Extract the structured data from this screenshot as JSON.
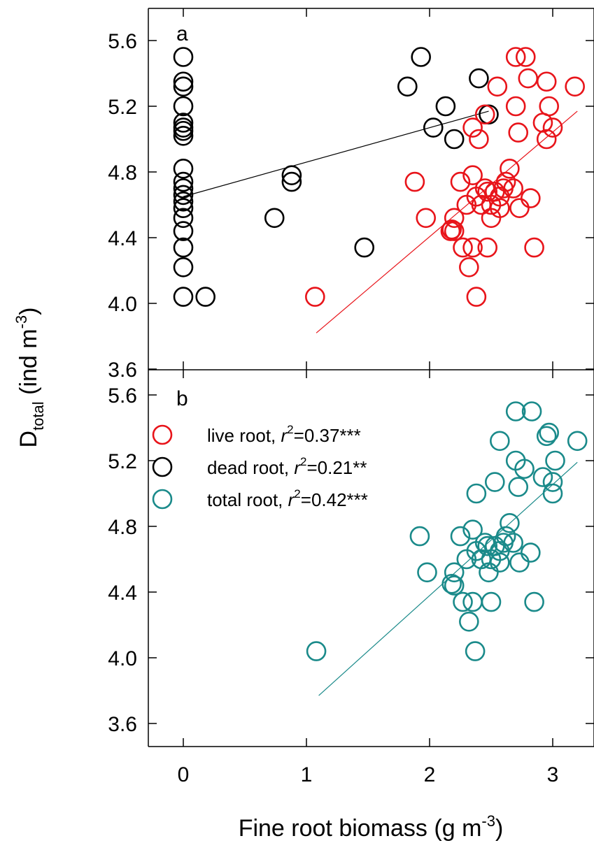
{
  "chart_data": {
    "type": "scatter",
    "xlabel": "Fine root biomass",
    "xlabel_unit_prefix": "(g m",
    "xlabel_unit_exp": "-3",
    "xlabel_unit_suffix": ")",
    "ylabel_main": "D",
    "ylabel_sub": "total",
    "ylabel_unit_prefix": " (ind m",
    "ylabel_unit_exp": "-3",
    "ylabel_unit_suffix": ")",
    "xlim": [
      -0.3,
      3.4
    ],
    "x_ticks": [
      0,
      1,
      2,
      3
    ],
    "ylim": [
      3.6,
      5.75
    ],
    "y_ticks": [
      "3.6",
      "4.0",
      "4.4",
      "4.8",
      "5.2",
      "5.6"
    ],
    "grid": false,
    "legend_position": "upper-left of panel b",
    "colors": {
      "live": "#e8141a",
      "dead": "#000000",
      "total": "#1a8a8a"
    },
    "legend": [
      {
        "series": "live",
        "label": "live root, ",
        "r": "r",
        "r_exp": "2",
        "stat": "=0.37***"
      },
      {
        "series": "dead",
        "label": "dead root, ",
        "r": "r",
        "r_exp": "2",
        "stat": "=0.21**"
      },
      {
        "series": "total",
        "label": "total root, ",
        "r": "r",
        "r_exp": "2",
        "stat": "=0.42***"
      }
    ],
    "panels": [
      {
        "label": "a",
        "series": [
          {
            "key": "dead",
            "points": [
              [
                0,
                5.5
              ],
              [
                0,
                5.35
              ],
              [
                0,
                5.32
              ],
              [
                0,
                5.2
              ],
              [
                0,
                5.1
              ],
              [
                0,
                5.07
              ],
              [
                0,
                5.05
              ],
              [
                0,
                5.02
              ],
              [
                0,
                4.82
              ],
              [
                0,
                4.74
              ],
              [
                0,
                4.7
              ],
              [
                0,
                4.66
              ],
              [
                0,
                4.62
              ],
              [
                0,
                4.58
              ],
              [
                0,
                4.52
              ],
              [
                0,
                4.44
              ],
              [
                0,
                4.34
              ],
              [
                0,
                4.22
              ],
              [
                0,
                4.04
              ],
              [
                0.18,
                4.04
              ],
              [
                0.74,
                4.52
              ],
              [
                0.88,
                4.78
              ],
              [
                0.88,
                4.74
              ],
              [
                1.47,
                4.34
              ],
              [
                1.82,
                5.32
              ],
              [
                1.93,
                5.5
              ],
              [
                2.03,
                5.07
              ],
              [
                2.13,
                5.2
              ],
              [
                2.2,
                5.0
              ],
              [
                2.4,
                5.37
              ],
              [
                2.48,
                5.15
              ]
            ],
            "fit": [
              [
                0,
                4.65
              ],
              [
                2.48,
                5.17
              ]
            ]
          },
          {
            "key": "live",
            "points": [
              [
                1.07,
                4.04
              ],
              [
                1.88,
                4.74
              ],
              [
                1.97,
                4.52
              ],
              [
                2.18,
                4.45
              ],
              [
                2.2,
                4.44
              ],
              [
                2.2,
                4.52
              ],
              [
                2.25,
                4.74
              ],
              [
                2.27,
                4.34
              ],
              [
                2.3,
                4.6
              ],
              [
                2.32,
                4.22
              ],
              [
                2.35,
                4.34
              ],
              [
                2.35,
                4.78
              ],
              [
                2.38,
                4.04
              ],
              [
                2.38,
                4.65
              ],
              [
                2.4,
                5.0
              ],
              [
                2.42,
                4.6
              ],
              [
                2.45,
                4.7
              ],
              [
                2.47,
                4.68
              ],
              [
                2.47,
                4.34
              ],
              [
                2.5,
                4.6
              ],
              [
                2.5,
                4.52
              ],
              [
                2.53,
                4.68
              ],
              [
                2.57,
                4.58
              ],
              [
                2.57,
                4.65
              ],
              [
                2.6,
                4.7
              ],
              [
                2.62,
                4.74
              ],
              [
                2.65,
                4.82
              ],
              [
                2.68,
                4.7
              ],
              [
                2.7,
                5.5
              ],
              [
                2.7,
                5.2
              ],
              [
                2.72,
                5.04
              ],
              [
                2.73,
                4.58
              ],
              [
                2.78,
                5.5
              ],
              [
                2.8,
                5.37
              ],
              [
                2.82,
                4.64
              ],
              [
                2.85,
                4.34
              ],
              [
                2.92,
                5.1
              ],
              [
                2.95,
                5.35
              ],
              [
                2.95,
                5.0
              ],
              [
                2.97,
                5.2
              ],
              [
                3.0,
                5.07
              ],
              [
                3.18,
                5.32
              ],
              [
                2.35,
                5.07
              ],
              [
                2.45,
                5.15
              ],
              [
                2.55,
                5.32
              ],
              [
                2.17,
                4.44
              ]
            ],
            "fit": [
              [
                1.08,
                3.82
              ],
              [
                3.2,
                5.17
              ]
            ]
          }
        ]
      },
      {
        "label": "b",
        "series": [
          {
            "key": "total",
            "points": [
              [
                1.08,
                4.04
              ],
              [
                1.92,
                4.74
              ],
              [
                1.98,
                4.52
              ],
              [
                2.18,
                4.45
              ],
              [
                2.2,
                4.44
              ],
              [
                2.2,
                4.52
              ],
              [
                2.25,
                4.74
              ],
              [
                2.27,
                4.34
              ],
              [
                2.3,
                4.6
              ],
              [
                2.32,
                4.22
              ],
              [
                2.35,
                4.34
              ],
              [
                2.35,
                4.78
              ],
              [
                2.37,
                4.04
              ],
              [
                2.38,
                4.65
              ],
              [
                2.38,
                5.0
              ],
              [
                2.42,
                4.6
              ],
              [
                2.45,
                4.7
              ],
              [
                2.47,
                4.68
              ],
              [
                2.5,
                4.34
              ],
              [
                2.5,
                4.6
              ],
              [
                2.48,
                4.52
              ],
              [
                2.53,
                4.68
              ],
              [
                2.57,
                4.58
              ],
              [
                2.57,
                4.65
              ],
              [
                2.6,
                4.7
              ],
              [
                2.62,
                4.74
              ],
              [
                2.65,
                4.82
              ],
              [
                2.68,
                4.7
              ],
              [
                2.7,
                5.5
              ],
              [
                2.7,
                5.2
              ],
              [
                2.72,
                5.04
              ],
              [
                2.73,
                4.58
              ],
              [
                2.83,
                5.5
              ],
              [
                2.77,
                5.15
              ],
              [
                2.82,
                4.64
              ],
              [
                2.85,
                4.34
              ],
              [
                2.92,
                5.1
              ],
              [
                2.95,
                5.35
              ],
              [
                2.97,
                5.37
              ],
              [
                3.0,
                5.07
              ],
              [
                3.0,
                5.0
              ],
              [
                3.02,
                5.2
              ],
              [
                3.2,
                5.32
              ],
              [
                2.53,
                5.07
              ],
              [
                2.57,
                5.32
              ]
            ],
            "fit": [
              [
                1.1,
                3.77
              ],
              [
                3.2,
                5.19
              ]
            ]
          }
        ]
      }
    ]
  }
}
